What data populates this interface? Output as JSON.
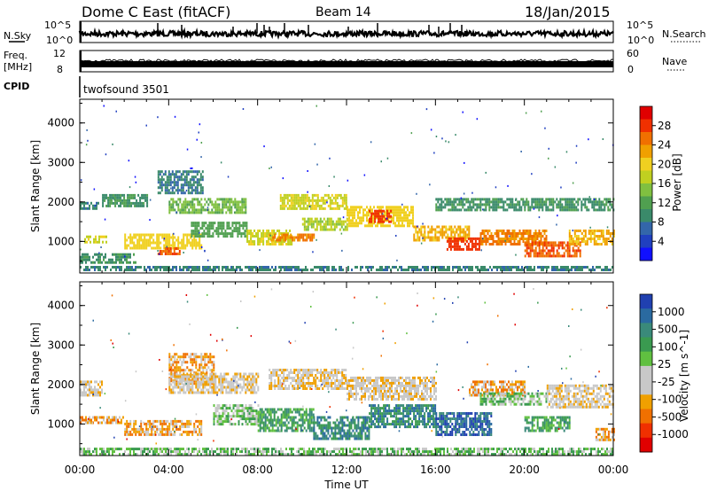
{
  "header": {
    "title": "Dome C East (fitACF)",
    "beam": "Beam 14",
    "date": "18/Jan/2015"
  },
  "top_panels": {
    "nsky_label": "N.Sky",
    "nsky_ticks": [
      "10^5",
      "10^0"
    ],
    "nsearch_label": "N.Search",
    "nsearch_ticks": [
      "10^5",
      "10^0"
    ],
    "freq_label": "Freq.",
    "freq_unit": "[MHz]",
    "freq_ticks": [
      "12",
      "8"
    ],
    "nave_label": "Nave",
    "nave_ticks": [
      "60",
      "0"
    ],
    "cpid_label": "CPID",
    "cpid_value": "twofsound 3501"
  },
  "colors": {
    "power": [
      "#1010ff",
      "#2040c0",
      "#3366aa",
      "#3a8a6a",
      "#50a050",
      "#80c040",
      "#c0d020",
      "#f0d020",
      "#f0a000",
      "#f07000",
      "#f03000",
      "#e00000"
    ],
    "velocity": [
      "#e00000",
      "#f03000",
      "#f07000",
      "#f0a000",
      "#c8c8c8",
      "#c8c8c8",
      "#60c040",
      "#3a9a50",
      "#3a8a7a",
      "#2a6aa0",
      "#2040b0"
    ]
  },
  "chart_data": [
    {
      "type": "heatmap",
      "quantity": "power",
      "ylabel": "Slant Range [km]",
      "ylim": [
        200,
        4600
      ],
      "yticks": [
        "1000",
        "2000",
        "3000",
        "4000"
      ],
      "xlim": [
        0,
        24
      ],
      "colorbar": {
        "label": "Power [dB]",
        "ticks": [
          "4",
          "8",
          "12",
          "16",
          "20",
          "24",
          "28"
        ],
        "range": [
          0,
          32
        ]
      },
      "bands": [
        {
          "t0": 0.0,
          "t1": 24.0,
          "r0": 250,
          "r1": 380,
          "level": 8
        },
        {
          "t0": 0.0,
          "t1": 2.5,
          "r0": 450,
          "r1": 700,
          "level": 10
        },
        {
          "t0": 0.2,
          "t1": 1.2,
          "r0": 1000,
          "r1": 1150,
          "level": 18
        },
        {
          "t0": 0.0,
          "t1": 0.8,
          "r0": 1800,
          "r1": 2000,
          "level": 8
        },
        {
          "t0": 1.0,
          "t1": 3.0,
          "r0": 1900,
          "r1": 2200,
          "level": 10
        },
        {
          "t0": 2.0,
          "t1": 5.5,
          "r0": 800,
          "r1": 1200,
          "level": 20
        },
        {
          "t0": 3.5,
          "t1": 4.5,
          "r0": 650,
          "r1": 850,
          "level": 26
        },
        {
          "t0": 4.0,
          "t1": 7.5,
          "r0": 1700,
          "r1": 2100,
          "level": 14
        },
        {
          "t0": 5.0,
          "t1": 7.5,
          "r0": 1100,
          "r1": 1500,
          "level": 12
        },
        {
          "t0": 7.5,
          "t1": 9.5,
          "r0": 900,
          "r1": 1300,
          "level": 18
        },
        {
          "t0": 8.5,
          "t1": 10.5,
          "r0": 1000,
          "r1": 1200,
          "level": 24
        },
        {
          "t0": 9.0,
          "t1": 12.0,
          "r0": 1800,
          "r1": 2200,
          "level": 18
        },
        {
          "t0": 10.0,
          "t1": 12.0,
          "r0": 1300,
          "r1": 1600,
          "level": 16
        },
        {
          "t0": 12.0,
          "t1": 15.0,
          "r0": 1400,
          "r1": 1900,
          "level": 20
        },
        {
          "t0": 13.0,
          "t1": 14.0,
          "r0": 1500,
          "r1": 1800,
          "level": 28
        },
        {
          "t0": 15.0,
          "t1": 17.5,
          "r0": 1000,
          "r1": 1400,
          "level": 22
        },
        {
          "t0": 16.5,
          "t1": 18.0,
          "r0": 800,
          "r1": 1100,
          "level": 28
        },
        {
          "t0": 18.0,
          "t1": 21.0,
          "r0": 900,
          "r1": 1300,
          "level": 24
        },
        {
          "t0": 20.0,
          "t1": 22.5,
          "r0": 650,
          "r1": 1000,
          "level": 26
        },
        {
          "t0": 22.0,
          "t1": 24.0,
          "r0": 900,
          "r1": 1300,
          "level": 22
        },
        {
          "t0": 16.0,
          "t1": 24.0,
          "r0": 1800,
          "r1": 2100,
          "level": 10
        },
        {
          "t0": 3.5,
          "t1": 5.5,
          "r0": 2200,
          "r1": 2800,
          "level": 8
        }
      ]
    },
    {
      "type": "heatmap",
      "quantity": "velocity",
      "ylabel": "Slant Range [km]",
      "ylim": [
        200,
        4600
      ],
      "yticks": [
        "1000",
        "2000",
        "3000",
        "4000"
      ],
      "xlabel": "Time UT",
      "xticks": [
        "00:00",
        "04:00",
        "08:00",
        "12:00",
        "16:00",
        "20:00",
        "00:00"
      ],
      "xlim": [
        0,
        24
      ],
      "colorbar": {
        "label": "Velocity [m s^-1]",
        "ticks": [
          "1000",
          "500",
          "100",
          "25",
          "-25",
          "-100",
          "-500",
          "-1000"
        ]
      },
      "bands": [
        {
          "t0": 0.0,
          "t1": 24.0,
          "r0": 250,
          "r1": 400,
          "level": 6
        },
        {
          "t0": 0.0,
          "t1": 1.0,
          "r0": 1700,
          "r1": 2100,
          "level": 4
        },
        {
          "t0": 0.0,
          "t1": 2.0,
          "r0": 1000,
          "r1": 1200,
          "level": 3
        },
        {
          "t0": 2.0,
          "t1": 5.5,
          "r0": 700,
          "r1": 1100,
          "level": 3
        },
        {
          "t0": 4.0,
          "t1": 6.0,
          "r0": 2000,
          "r1": 2800,
          "level": 3
        },
        {
          "t0": 4.0,
          "t1": 8.0,
          "r0": 1800,
          "r1": 2300,
          "level": 4
        },
        {
          "t0": 6.0,
          "t1": 8.0,
          "r0": 1000,
          "r1": 1500,
          "level": 6
        },
        {
          "t0": 8.0,
          "t1": 10.5,
          "r0": 800,
          "r1": 1400,
          "level": 7
        },
        {
          "t0": 8.5,
          "t1": 12.0,
          "r0": 1900,
          "r1": 2400,
          "level": 4
        },
        {
          "t0": 10.5,
          "t1": 13.0,
          "r0": 600,
          "r1": 1200,
          "level": 8
        },
        {
          "t0": 12.0,
          "t1": 16.0,
          "r0": 1600,
          "r1": 2200,
          "level": 4
        },
        {
          "t0": 13.0,
          "t1": 16.0,
          "r0": 900,
          "r1": 1500,
          "level": 8
        },
        {
          "t0": 16.0,
          "t1": 18.5,
          "r0": 700,
          "r1": 1300,
          "level": 9
        },
        {
          "t0": 17.5,
          "t1": 20.0,
          "r0": 1700,
          "r1": 2100,
          "level": 3
        },
        {
          "t0": 18.0,
          "t1": 21.0,
          "r0": 1500,
          "r1": 1800,
          "level": 6
        },
        {
          "t0": 20.0,
          "t1": 22.0,
          "r0": 800,
          "r1": 1200,
          "level": 7
        },
        {
          "t0": 21.0,
          "t1": 24.0,
          "r0": 1400,
          "r1": 2000,
          "level": 4
        },
        {
          "t0": 23.2,
          "t1": 24.0,
          "r0": 600,
          "r1": 900,
          "level": 3
        }
      ]
    }
  ]
}
